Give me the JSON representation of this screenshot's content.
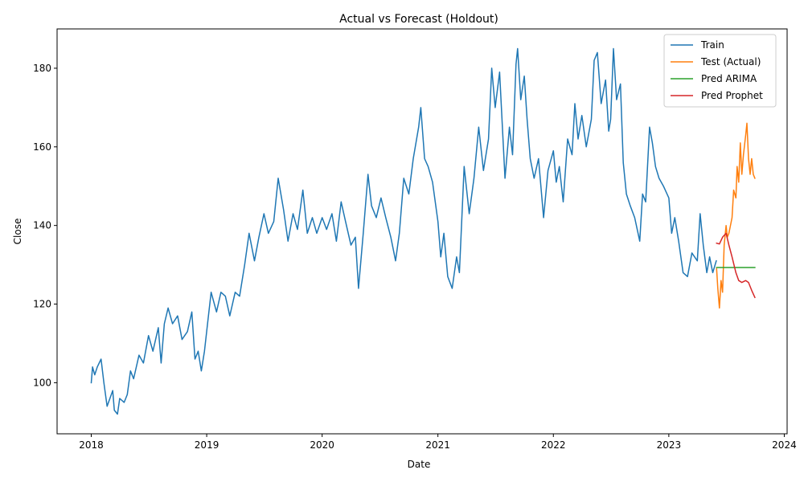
{
  "chart_data": {
    "type": "line",
    "title": "Actual vs Forecast (Holdout)",
    "xlabel": "Date",
    "ylabel": "Close",
    "xlim": [
      "2017-09-15",
      "2024-01-10"
    ],
    "ylim": [
      87,
      190
    ],
    "x_ticks": [
      "2018",
      "2019",
      "2020",
      "2021",
      "2022",
      "2023",
      "2024"
    ],
    "y_ticks": [
      100,
      120,
      140,
      160,
      180
    ],
    "grid": false,
    "legend_position": "top-right",
    "series": [
      {
        "name": "Train",
        "color": "#1f77b4",
        "points": [
          [
            "2018-01-01",
            100
          ],
          [
            "2018-01-05",
            104
          ],
          [
            "2018-01-12",
            102
          ],
          [
            "2018-01-20",
            104
          ],
          [
            "2018-02-01",
            106
          ],
          [
            "2018-02-10",
            100
          ],
          [
            "2018-02-20",
            94
          ],
          [
            "2018-03-01",
            96
          ],
          [
            "2018-03-10",
            98
          ],
          [
            "2018-03-15",
            93
          ],
          [
            "2018-03-25",
            92
          ],
          [
            "2018-04-01",
            96
          ],
          [
            "2018-04-15",
            95
          ],
          [
            "2018-04-25",
            97
          ],
          [
            "2018-05-05",
            103
          ],
          [
            "2018-05-15",
            101
          ],
          [
            "2018-06-01",
            107
          ],
          [
            "2018-06-15",
            105
          ],
          [
            "2018-07-01",
            112
          ],
          [
            "2018-07-15",
            108
          ],
          [
            "2018-08-01",
            114
          ],
          [
            "2018-08-10",
            105
          ],
          [
            "2018-08-20",
            115
          ],
          [
            "2018-09-01",
            119
          ],
          [
            "2018-09-15",
            115
          ],
          [
            "2018-10-01",
            117
          ],
          [
            "2018-10-15",
            111
          ],
          [
            "2018-11-01",
            113
          ],
          [
            "2018-11-15",
            118
          ],
          [
            "2018-11-25",
            106
          ],
          [
            "2018-12-05",
            108
          ],
          [
            "2018-12-15",
            103
          ],
          [
            "2018-12-25",
            108
          ],
          [
            "2019-01-05",
            116
          ],
          [
            "2019-01-15",
            123
          ],
          [
            "2019-02-01",
            118
          ],
          [
            "2019-02-15",
            123
          ],
          [
            "2019-03-01",
            122
          ],
          [
            "2019-03-15",
            117
          ],
          [
            "2019-04-01",
            123
          ],
          [
            "2019-04-15",
            122
          ],
          [
            "2019-05-01",
            130
          ],
          [
            "2019-05-15",
            138
          ],
          [
            "2019-06-01",
            131
          ],
          [
            "2019-06-15",
            137
          ],
          [
            "2019-07-01",
            143
          ],
          [
            "2019-07-15",
            138
          ],
          [
            "2019-08-01",
            141
          ],
          [
            "2019-08-15",
            152
          ],
          [
            "2019-09-01",
            144
          ],
          [
            "2019-09-15",
            136
          ],
          [
            "2019-10-01",
            143
          ],
          [
            "2019-10-15",
            139
          ],
          [
            "2019-11-01",
            149
          ],
          [
            "2019-11-15",
            138
          ],
          [
            "2019-12-01",
            142
          ],
          [
            "2019-12-15",
            138
          ],
          [
            "2020-01-01",
            142
          ],
          [
            "2020-01-15",
            139
          ],
          [
            "2020-02-01",
            143
          ],
          [
            "2020-02-15",
            136
          ],
          [
            "2020-03-01",
            146
          ],
          [
            "2020-03-15",
            141
          ],
          [
            "2020-04-01",
            135
          ],
          [
            "2020-04-15",
            137
          ],
          [
            "2020-04-25",
            124
          ],
          [
            "2020-05-10",
            138
          ],
          [
            "2020-05-25",
            153
          ],
          [
            "2020-06-05",
            145
          ],
          [
            "2020-06-20",
            142
          ],
          [
            "2020-07-05",
            147
          ],
          [
            "2020-07-20",
            142
          ],
          [
            "2020-08-05",
            137
          ],
          [
            "2020-08-20",
            131
          ],
          [
            "2020-09-01",
            138
          ],
          [
            "2020-09-15",
            152
          ],
          [
            "2020-10-01",
            148
          ],
          [
            "2020-10-15",
            157
          ],
          [
            "2020-11-01",
            165
          ],
          [
            "2020-11-08",
            170
          ],
          [
            "2020-11-20",
            157
          ],
          [
            "2020-12-01",
            155
          ],
          [
            "2020-12-15",
            151
          ],
          [
            "2021-01-01",
            141
          ],
          [
            "2021-01-10",
            132
          ],
          [
            "2021-01-20",
            138
          ],
          [
            "2021-02-01",
            127
          ],
          [
            "2021-02-15",
            124
          ],
          [
            "2021-03-01",
            132
          ],
          [
            "2021-03-10",
            128
          ],
          [
            "2021-03-25",
            155
          ],
          [
            "2021-04-10",
            143
          ],
          [
            "2021-04-25",
            152
          ],
          [
            "2021-05-10",
            165
          ],
          [
            "2021-05-25",
            154
          ],
          [
            "2021-06-10",
            162
          ],
          [
            "2021-06-20",
            180
          ],
          [
            "2021-07-01",
            170
          ],
          [
            "2021-07-15",
            179
          ],
          [
            "2021-08-01",
            152
          ],
          [
            "2021-08-15",
            165
          ],
          [
            "2021-08-25",
            158
          ],
          [
            "2021-09-05",
            181
          ],
          [
            "2021-09-10",
            185
          ],
          [
            "2021-09-20",
            172
          ],
          [
            "2021-10-01",
            178
          ],
          [
            "2021-10-10",
            167
          ],
          [
            "2021-10-20",
            157
          ],
          [
            "2021-11-01",
            152
          ],
          [
            "2021-11-15",
            157
          ],
          [
            "2021-12-01",
            142
          ],
          [
            "2021-12-15",
            154
          ],
          [
            "2022-01-01",
            159
          ],
          [
            "2022-01-10",
            151
          ],
          [
            "2022-01-20",
            155
          ],
          [
            "2022-02-01",
            146
          ],
          [
            "2022-02-15",
            162
          ],
          [
            "2022-03-01",
            158
          ],
          [
            "2022-03-10",
            171
          ],
          [
            "2022-03-20",
            162
          ],
          [
            "2022-04-01",
            168
          ],
          [
            "2022-04-15",
            160
          ],
          [
            "2022-05-01",
            167
          ],
          [
            "2022-05-10",
            182
          ],
          [
            "2022-05-20",
            184
          ],
          [
            "2022-06-01",
            171
          ],
          [
            "2022-06-15",
            177
          ],
          [
            "2022-06-25",
            164
          ],
          [
            "2022-07-01",
            167
          ],
          [
            "2022-07-10",
            185
          ],
          [
            "2022-07-20",
            172
          ],
          [
            "2022-08-01",
            176
          ],
          [
            "2022-08-10",
            156
          ],
          [
            "2022-08-20",
            148
          ],
          [
            "2022-09-01",
            145
          ],
          [
            "2022-09-15",
            142
          ],
          [
            "2022-10-01",
            136
          ],
          [
            "2022-10-10",
            148
          ],
          [
            "2022-10-20",
            146
          ],
          [
            "2022-11-01",
            165
          ],
          [
            "2022-11-10",
            161
          ],
          [
            "2022-11-20",
            155
          ],
          [
            "2022-12-01",
            152
          ],
          [
            "2022-12-15",
            150
          ],
          [
            "2023-01-01",
            147
          ],
          [
            "2023-01-10",
            138
          ],
          [
            "2023-01-20",
            142
          ],
          [
            "2023-02-01",
            136
          ],
          [
            "2023-02-15",
            128
          ],
          [
            "2023-03-01",
            127
          ],
          [
            "2023-03-15",
            133
          ],
          [
            "2023-04-01",
            131
          ],
          [
            "2023-04-10",
            143
          ],
          [
            "2023-04-20",
            135
          ],
          [
            "2023-05-01",
            128
          ],
          [
            "2023-05-10",
            132
          ],
          [
            "2023-05-20",
            128
          ],
          [
            "2023-05-31",
            131
          ]
        ]
      },
      {
        "name": "Test (Actual)",
        "color": "#ff7f0e",
        "points": [
          [
            "2023-06-01",
            129
          ],
          [
            "2023-06-05",
            124
          ],
          [
            "2023-06-10",
            119
          ],
          [
            "2023-06-15",
            126
          ],
          [
            "2023-06-20",
            123
          ],
          [
            "2023-06-25",
            135
          ],
          [
            "2023-07-01",
            140
          ],
          [
            "2023-07-05",
            137
          ],
          [
            "2023-07-10",
            138
          ],
          [
            "2023-07-20",
            142
          ],
          [
            "2023-07-25",
            149
          ],
          [
            "2023-08-01",
            147
          ],
          [
            "2023-08-05",
            155
          ],
          [
            "2023-08-10",
            151
          ],
          [
            "2023-08-15",
            161
          ],
          [
            "2023-08-20",
            153
          ],
          [
            "2023-08-25",
            158
          ],
          [
            "2023-09-01",
            163
          ],
          [
            "2023-09-05",
            166
          ],
          [
            "2023-09-10",
            157
          ],
          [
            "2023-09-15",
            153
          ],
          [
            "2023-09-20",
            157
          ],
          [
            "2023-09-25",
            153
          ],
          [
            "2023-09-30",
            152
          ]
        ]
      },
      {
        "name": "Pred ARIMA",
        "color": "#2ca02c",
        "points": [
          [
            "2023-06-01",
            129.3
          ],
          [
            "2023-09-30",
            129.3
          ]
        ]
      },
      {
        "name": "Pred Prophet",
        "color": "#d62728",
        "points": [
          [
            "2023-06-01",
            135.5
          ],
          [
            "2023-06-10",
            135.3
          ],
          [
            "2023-06-20",
            137
          ],
          [
            "2023-07-01",
            138
          ],
          [
            "2023-07-10",
            135
          ],
          [
            "2023-07-20",
            132
          ],
          [
            "2023-08-01",
            128
          ],
          [
            "2023-08-10",
            126
          ],
          [
            "2023-08-20",
            125.5
          ],
          [
            "2023-09-01",
            126
          ],
          [
            "2023-09-10",
            125.5
          ],
          [
            "2023-09-20",
            123.5
          ],
          [
            "2023-09-30",
            121.7
          ]
        ]
      }
    ]
  }
}
